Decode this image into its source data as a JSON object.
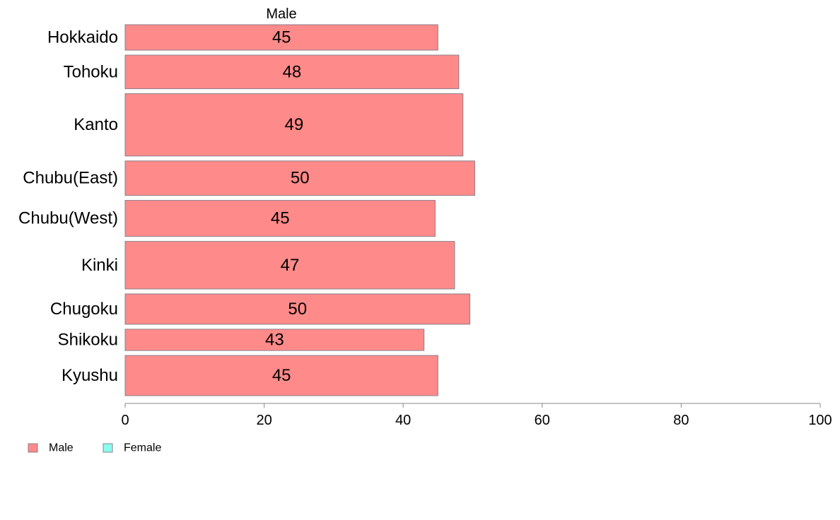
{
  "chart_data": {
    "type": "bar",
    "orientation": "horizontal",
    "panel_title": "Male",
    "categories": [
      "Hokkaido",
      "Tohoku",
      "Kanto",
      "Chubu(East)",
      "Chubu(West)",
      "Kinki",
      "Chugoku",
      "Shikoku",
      "Kyushu"
    ],
    "series": [
      {
        "name": "Male",
        "color": "#ff8a8a",
        "values": [
          45,
          48,
          48.6,
          50.3,
          44.6,
          47.4,
          49.6,
          43,
          45
        ]
      }
    ],
    "value_labels": [
      "45",
      "48",
      "49",
      "50",
      "45",
      "47",
      "50",
      "43",
      "45"
    ],
    "bar_weights": [
      1.55,
      2.05,
      3.8,
      2.1,
      2.2,
      2.9,
      1.85,
      1.3,
      2.45
    ],
    "xlim": [
      0,
      100
    ],
    "xticks": [
      0,
      20,
      40,
      60,
      80,
      100
    ],
    "xlabel": "",
    "ylabel": "",
    "legend": {
      "position": "bottom-left",
      "items": [
        {
          "name": "Male",
          "color": "#ff8a8a"
        },
        {
          "name": "Female",
          "color": "#8affef"
        }
      ]
    }
  }
}
